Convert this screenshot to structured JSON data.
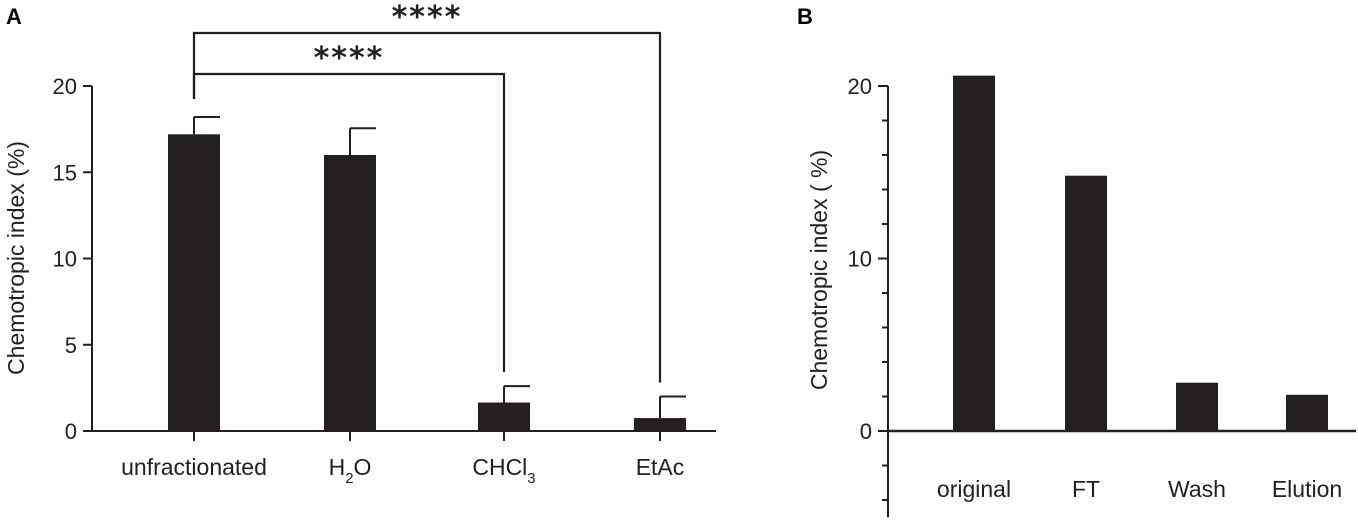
{
  "chart_data": [
    {
      "panel": "A",
      "type": "bar",
      "categories": [
        "unfractionated",
        "H2O",
        "CHCl3",
        "EtAc"
      ],
      "category_labels": [
        {
          "main": "unfractionated",
          "sub": "",
          "tail": ""
        },
        {
          "main": "H",
          "sub": "2",
          "tail": "O"
        },
        {
          "main": "CHCl",
          "sub": "3",
          "tail": ""
        },
        {
          "main": "EtAc",
          "sub": "",
          "tail": ""
        }
      ],
      "values": [
        17.2,
        16.0,
        1.65,
        0.75
      ],
      "error": [
        1.0,
        1.55,
        0.95,
        1.25
      ],
      "ylabel": "Chemotropic index (%)",
      "ylim": [
        0,
        20
      ],
      "yticks": [
        0,
        5,
        10,
        15,
        20
      ],
      "grid": false,
      "significance": [
        {
          "from": 0,
          "to": 2,
          "label": "****"
        },
        {
          "from": 0,
          "to": 3,
          "label": "****"
        }
      ],
      "bar_color": "#231f20"
    },
    {
      "panel": "B",
      "type": "bar",
      "categories": [
        "original",
        "FT",
        "Wash",
        "Elution"
      ],
      "values": [
        20.6,
        14.8,
        2.8,
        2.1
      ],
      "ylabel": "Chemotropic index ( %)",
      "ylim": [
        -5,
        20
      ],
      "yticks": [
        0,
        10,
        20
      ],
      "minor_step": 2,
      "grid": false,
      "bar_color": "#231f20"
    }
  ]
}
